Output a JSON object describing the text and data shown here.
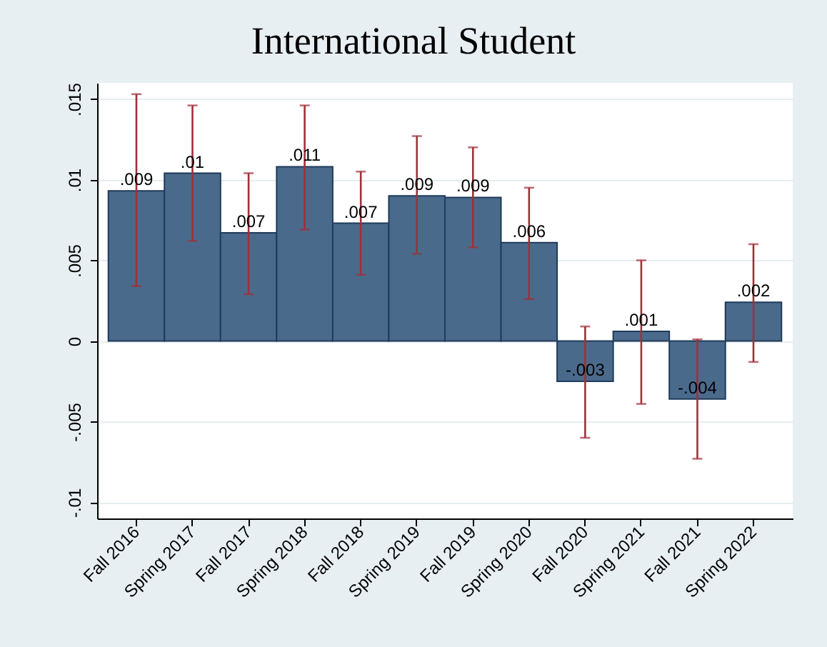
{
  "chart_data": {
    "type": "bar",
    "title": "International Student",
    "categories": [
      "Fall 2016",
      "Spring 2017",
      "Fall 2017",
      "Spring 2018",
      "Fall 2018",
      "Spring 2019",
      "Fall 2019",
      "Spring 2020",
      "Fall 2020",
      "Spring 2021",
      "Fall 2021",
      "Spring 2022"
    ],
    "values": [
      0.0093,
      0.0104,
      0.0067,
      0.0108,
      0.0073,
      0.009,
      0.0089,
      0.0061,
      -0.0025,
      0.0006,
      -0.0036,
      0.0024
    ],
    "errors": [
      [
        0.0034,
        0.0153
      ],
      [
        0.0062,
        0.0146
      ],
      [
        0.0029,
        0.0104
      ],
      [
        0.0069,
        0.0146
      ],
      [
        0.0041,
        0.0105
      ],
      [
        0.0054,
        0.0127
      ],
      [
        0.0058,
        0.012
      ],
      [
        0.0026,
        0.0095
      ],
      [
        -0.006,
        0.0009
      ],
      [
        -0.0039,
        0.005
      ],
      [
        -0.0073,
        0.0001
      ],
      [
        -0.0013,
        0.006
      ]
    ],
    "value_labels": [
      ".009",
      ".01",
      ".007",
      ".011",
      ".007",
      ".009",
      ".009",
      ".006",
      "-.003",
      ".001",
      "-.004",
      ".002"
    ],
    "color": "#4a6a8c",
    "ylim": [
      -0.011,
      0.016
    ],
    "yticks": [
      {
        "value": -0.01,
        "label": "-.01"
      },
      {
        "value": -0.005,
        "label": "-.005"
      },
      0,
      {
        "value": 0.005,
        "label": ".005"
      },
      {
        "value": 0.01,
        "label": ".01"
      },
      {
        "value": 0.015,
        "label": ".015"
      }
    ],
    "grid": true
  }
}
